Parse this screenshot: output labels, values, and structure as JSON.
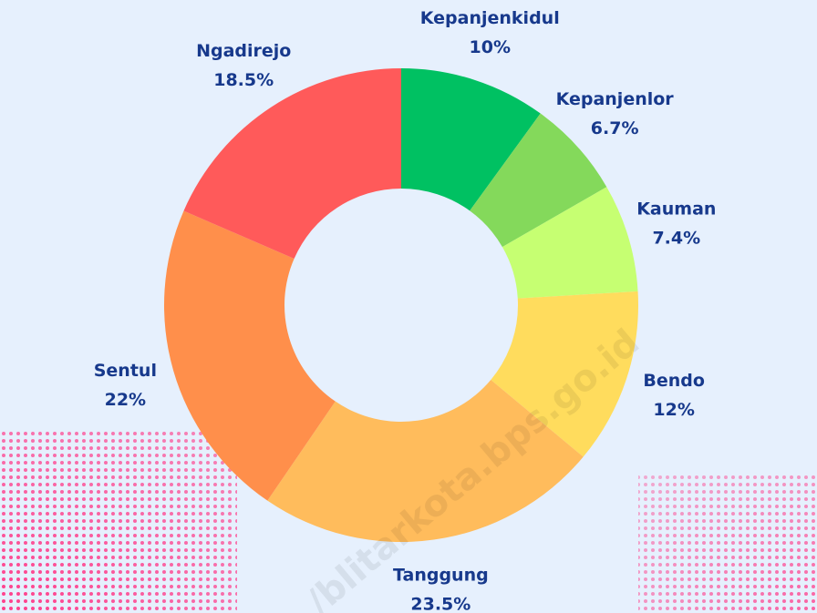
{
  "chart_data": {
    "type": "donut",
    "categories": [
      "Kepanjenkidul",
      "Kepanjenlor",
      "Kauman",
      "Bendo",
      "Tanggung",
      "Sentul",
      "Ngadirejo"
    ],
    "values": [
      10,
      6.7,
      7.4,
      12,
      23.5,
      22,
      18.5
    ],
    "value_labels": [
      "10%",
      "6.7%",
      "7.4%",
      "12%",
      "23.5%",
      "22%",
      "18.5%"
    ],
    "colors": [
      "#00c162",
      "#84d95b",
      "#c6ff72",
      "#ffdc5d",
      "#ffbc5c",
      "#ff8f4b",
      "#ff5a5a"
    ],
    "watermark": "/blitarkota.bps.go.id"
  }
}
